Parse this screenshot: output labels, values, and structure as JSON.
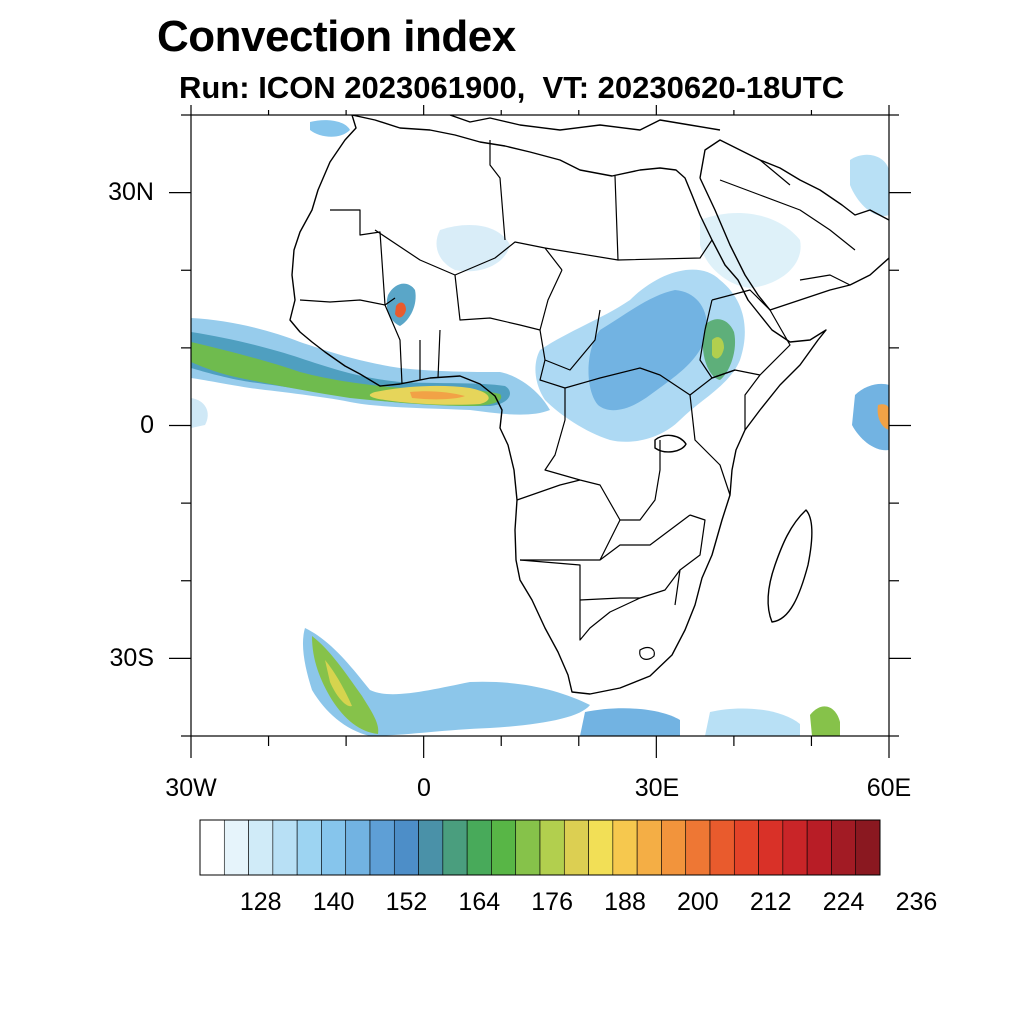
{
  "title": "Convection index",
  "subtitle": "Run: ICON 2023061900,  VT: 20230620-18UTC",
  "map": {
    "lon_range": [
      -30,
      60
    ],
    "lat_range": [
      -40,
      40
    ],
    "lat_tick_labels": [
      "30N",
      "0",
      "30S"
    ],
    "lon_tick_labels": [
      "30W",
      "0",
      "30E",
      "60E"
    ]
  },
  "colorbar": {
    "labels": [
      "128",
      "140",
      "152",
      "164",
      "176",
      "188",
      "200",
      "212",
      "224",
      "236"
    ],
    "colors": [
      "#ffffff",
      "#e6f4fb",
      "#d0ebf8",
      "#b8e0f5",
      "#9dd4f2",
      "#86c5ec",
      "#72b3e2",
      "#5e9fd6",
      "#4d8ec8",
      "#4a91a8",
      "#4a9e7e",
      "#48aa5a",
      "#58b646",
      "#86c24a",
      "#b2cf4e",
      "#dccf52",
      "#f2df56",
      "#f6c84e",
      "#f4ae45",
      "#f2943c",
      "#ee7734",
      "#e95b2d",
      "#e34329",
      "#d93128",
      "#c92528",
      "#b81d26",
      "#a21b24",
      "#8a1820"
    ]
  }
}
